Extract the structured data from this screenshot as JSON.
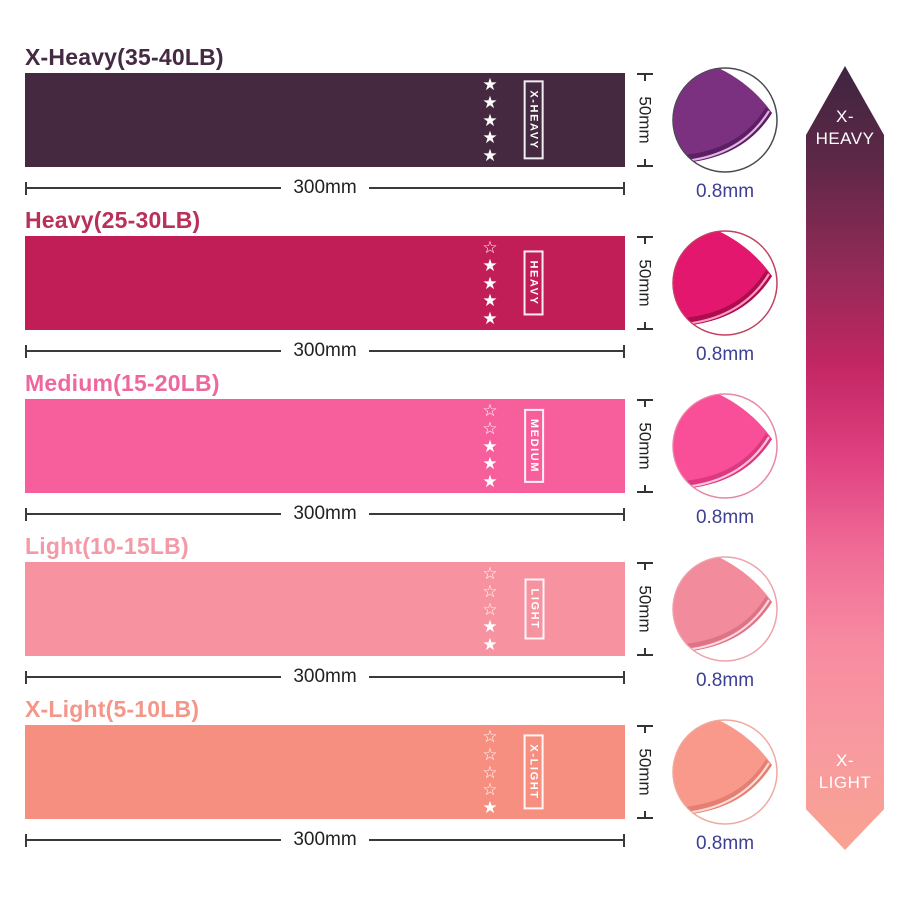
{
  "dimensions": {
    "width_label": "300mm",
    "height_label": "50mm",
    "thickness_label": "0.8mm",
    "thickness_color": "#3c3f92",
    "dim_line_color": "#3a3a3a"
  },
  "glyphs": {
    "star_filled": "★",
    "star_outline": "☆"
  },
  "bands": [
    {
      "name": "x-heavy",
      "label": "X-Heavy(35-40LB)",
      "tag": "X-HEAVY",
      "stars_filled": 5,
      "stars_total": 5,
      "band_color": "#452941",
      "label_color": "#452a44",
      "fold_main": "#7b3080",
      "fold_dark": "#5c1f63",
      "fold_light": "#e0b3e3",
      "circle_border": "#4a4a52"
    },
    {
      "name": "heavy",
      "label": "Heavy(25-30LB)",
      "tag": "HEAVY",
      "stars_filled": 4,
      "stars_total": 5,
      "band_color": "#c11d57",
      "label_color": "#b93059",
      "fold_main": "#e3176e",
      "fold_dark": "#ad0d4e",
      "fold_light": "#ff9dc0",
      "circle_border": "#c2415f"
    },
    {
      "name": "medium",
      "label": "Medium(15-20LB)",
      "tag": "MEDIUM",
      "stars_filled": 3,
      "stars_total": 5,
      "band_color": "#f75f9c",
      "label_color": "#ee679f",
      "fold_main": "#f94f98",
      "fold_dark": "#dd3880",
      "fold_light": "#ffc3da",
      "circle_border": "#e886a4"
    },
    {
      "name": "light",
      "label": "Light(10-15LB)",
      "tag": "LIGHT",
      "stars_filled": 2,
      "stars_total": 5,
      "band_color": "#f792a0",
      "label_color": "#f29aa8",
      "fold_main": "#f28c9c",
      "fold_dark": "#de7386",
      "fold_light": "#ffd6dc",
      "circle_border": "#eda3ab"
    },
    {
      "name": "x-light",
      "label": "X-Light(5-10LB)",
      "tag": "X-LIGHT",
      "stars_filled": 1,
      "stars_total": 5,
      "band_color": "#f78f80",
      "label_color": "#f4968a",
      "fold_main": "#f8998c",
      "fold_dark": "#e47f73",
      "fold_light": "#ffdcd2",
      "circle_border": "#f0a99e"
    }
  ],
  "arrow": {
    "top_label_lines": [
      "X-",
      "HEAVY"
    ],
    "bottom_label_lines": [
      "X-",
      "LIGHT"
    ],
    "text_color": "#ffffff",
    "gradient": [
      {
        "color": "#3e2540",
        "at": "0%"
      },
      {
        "color": "#5d2847",
        "at": "12%"
      },
      {
        "color": "#8f2a56",
        "at": "25%"
      },
      {
        "color": "#c22663",
        "at": "38%"
      },
      {
        "color": "#e04181",
        "at": "50%"
      },
      {
        "color": "#f06c97",
        "at": "62%"
      },
      {
        "color": "#f78ba1",
        "at": "74%"
      },
      {
        "color": "#f899a0",
        "at": "86%"
      },
      {
        "color": "#f9a392",
        "at": "100%"
      }
    ]
  }
}
